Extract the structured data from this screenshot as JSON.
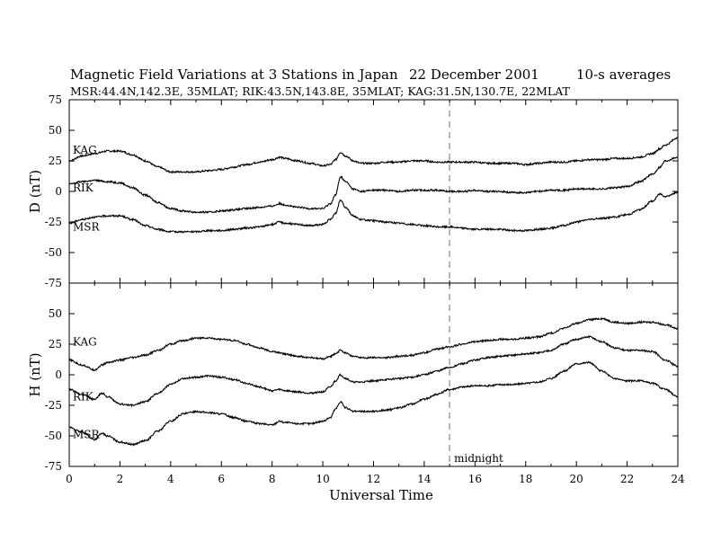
{
  "header": {
    "title": "Magnetic Field Variations at 3 Stations in Japan",
    "date": "22 December 2001",
    "averaging": "10-s averages",
    "stations_line": "MSR:44.4N,142.3E, 35MLAT;   RIK:43.5N,143.8E, 35MLAT;   KAG:31.5N,130.7E, 22MLAT"
  },
  "chart_data": [
    {
      "type": "line",
      "panel": "top",
      "ylabel": "D (nT)",
      "xlabel": "",
      "xlim": [
        0,
        24
      ],
      "ylim": [
        -75,
        75
      ],
      "x_ticks": [
        0,
        2,
        4,
        6,
        8,
        10,
        12,
        14,
        16,
        18,
        20,
        22,
        24
      ],
      "y_ticks": [
        75,
        50,
        25,
        0,
        -25,
        -50,
        -75
      ],
      "grid": false,
      "x": [
        0,
        0.5,
        1,
        1.5,
        2,
        2.5,
        3,
        3.5,
        4,
        4.5,
        5,
        5.5,
        6,
        6.5,
        7,
        7.5,
        8,
        8.3,
        8.5,
        9,
        9.5,
        10,
        10.3,
        10.5,
        10.7,
        10.9,
        11.2,
        11.5,
        12,
        12.5,
        13,
        13.5,
        14,
        14.5,
        15,
        15.5,
        16,
        16.5,
        17,
        17.5,
        18,
        18.5,
        19,
        19.5,
        20,
        20.5,
        21,
        21.5,
        22,
        22.5,
        23,
        23.3,
        23.5,
        24
      ],
      "series": [
        {
          "name": "KAG",
          "values": [
            25,
            29,
            31,
            33,
            33,
            30,
            25,
            20,
            16,
            16,
            16,
            17,
            18,
            20,
            22,
            24,
            26,
            28,
            27,
            25,
            23,
            21,
            22,
            26,
            32,
            29,
            25,
            23,
            23,
            24,
            24,
            25,
            25,
            24,
            24,
            24,
            24,
            23,
            23,
            23,
            22,
            23,
            24,
            24,
            25,
            26,
            26,
            27,
            27,
            28,
            31,
            35,
            38,
            44
          ]
        },
        {
          "name": "RIK",
          "values": [
            6,
            8,
            9,
            8,
            7,
            3,
            -3,
            -9,
            -14,
            -16,
            -17,
            -17,
            -16,
            -15,
            -14,
            -13,
            -12,
            -10,
            -11,
            -13,
            -14,
            -14,
            -10,
            -3,
            12,
            8,
            2,
            0,
            1,
            1,
            0,
            1,
            1,
            1,
            0,
            0,
            1,
            0,
            0,
            -1,
            -1,
            0,
            1,
            1,
            2,
            2,
            2,
            3,
            4,
            8,
            14,
            20,
            25,
            28
          ]
        },
        {
          "name": "MSR",
          "values": [
            -26,
            -23,
            -21,
            -20,
            -20,
            -23,
            -28,
            -31,
            -33,
            -33,
            -33,
            -32,
            -32,
            -31,
            -30,
            -29,
            -27,
            -25,
            -26,
            -27,
            -28,
            -27,
            -23,
            -18,
            -7,
            -13,
            -20,
            -23,
            -24,
            -25,
            -26,
            -27,
            -28,
            -29,
            -29,
            -30,
            -31,
            -31,
            -31,
            -32,
            -32,
            -31,
            -30,
            -28,
            -25,
            -23,
            -22,
            -21,
            -19,
            -15,
            -8,
            -2,
            -4,
            -1
          ]
        }
      ]
    },
    {
      "type": "line",
      "panel": "bottom",
      "ylabel": "H (nT)",
      "xlabel": "Universal Time",
      "xlim": [
        0,
        24
      ],
      "ylim": [
        -75,
        75
      ],
      "x_ticks": [
        0,
        2,
        4,
        6,
        8,
        10,
        12,
        14,
        16,
        18,
        20,
        22,
        24
      ],
      "x_tick_labels": [
        "0",
        "2",
        "4",
        "6",
        "8",
        "10",
        "12",
        "14",
        "16",
        "18",
        "20",
        "22",
        "24"
      ],
      "y_ticks": [
        50,
        25,
        0,
        -25,
        -50,
        -75
      ],
      "grid": false,
      "annotation": {
        "x": 15,
        "label": "midnight",
        "style": "dashed-vertical-line"
      },
      "x": [
        0,
        0.5,
        1,
        1.3,
        1.5,
        2,
        2.5,
        3,
        3.5,
        4,
        4.5,
        5,
        5.5,
        6,
        6.5,
        7,
        7.5,
        8,
        8.3,
        8.5,
        9,
        9.5,
        10,
        10.3,
        10.5,
        10.7,
        10.9,
        11.2,
        11.5,
        12,
        12.5,
        13,
        13.5,
        14,
        14.5,
        15,
        15.5,
        16,
        16.5,
        17,
        17.5,
        18,
        18.5,
        19,
        19.5,
        20,
        20.5,
        21,
        21.5,
        22,
        22.5,
        23,
        23.5,
        24
      ],
      "series": [
        {
          "name": "KAG",
          "values": [
            12,
            8,
            4,
            8,
            10,
            12,
            14,
            16,
            20,
            25,
            28,
            30,
            30,
            29,
            28,
            25,
            22,
            19,
            18,
            17,
            15,
            14,
            13,
            15,
            17,
            20,
            18,
            15,
            14,
            14,
            14,
            15,
            16,
            18,
            21,
            23,
            25,
            27,
            28,
            29,
            29,
            30,
            31,
            34,
            38,
            42,
            45,
            46,
            43,
            42,
            43,
            43,
            41,
            38
          ]
        },
        {
          "name": "RIK",
          "values": [
            -12,
            -16,
            -20,
            -15,
            -18,
            -24,
            -25,
            -22,
            -15,
            -8,
            -3,
            -2,
            -1,
            -2,
            -4,
            -7,
            -10,
            -13,
            -12,
            -13,
            -14,
            -15,
            -14,
            -10,
            -5,
            0,
            -3,
            -6,
            -6,
            -5,
            -4,
            -3,
            -2,
            0,
            3,
            6,
            9,
            12,
            14,
            15,
            16,
            17,
            18,
            20,
            25,
            29,
            31,
            27,
            22,
            20,
            20,
            19,
            12,
            7
          ]
        },
        {
          "name": "MSR",
          "values": [
            -43,
            -47,
            -53,
            -48,
            -50,
            -55,
            -57,
            -54,
            -46,
            -38,
            -32,
            -30,
            -31,
            -32,
            -35,
            -38,
            -40,
            -41,
            -38,
            -39,
            -40,
            -40,
            -38,
            -35,
            -28,
            -22,
            -27,
            -30,
            -30,
            -30,
            -29,
            -27,
            -24,
            -20,
            -16,
            -12,
            -10,
            -9,
            -9,
            -8,
            -8,
            -7,
            -6,
            -3,
            3,
            9,
            10,
            3,
            -3,
            -5,
            -5,
            -7,
            -12,
            -18
          ]
        }
      ]
    }
  ]
}
